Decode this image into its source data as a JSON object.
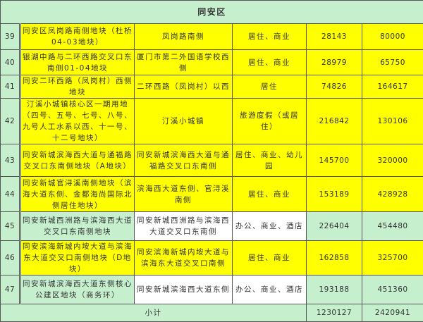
{
  "title": "同安区",
  "colors": {
    "green": "#c6efce",
    "yellow": "#ffff00",
    "white": "#ffffff"
  },
  "rows": [
    {
      "no": "39",
      "name": "同安区凤岗路南侧地块（杜桥04-03地块）",
      "location": "凤岗路南侧",
      "use": "居住、商业",
      "area": "28143",
      "value": "80000"
    },
    {
      "no": "40",
      "name": "银湖中路与二环西路交叉口东南侧01-04地块",
      "location": "厦门市第二外国语学校西侧",
      "use": "居住、商业",
      "area": "28979",
      "value": "65750"
    },
    {
      "no": "41",
      "name": "同安二环西路（凤岗村）西侧地块",
      "location": "二环西路（凤岗村）以西",
      "use": "居住",
      "area": "74826",
      "value": "164617"
    },
    {
      "no": "42",
      "name": "汀溪小城镇核心区一期用地（四号、五号、七号、八号、九号人工水系以西、十一号、十二号地块）",
      "location": "汀溪小城镇",
      "use": "旅游度假（或居住）",
      "area": "216842",
      "value": "130106"
    },
    {
      "no": "43",
      "name": "同安新城滨海西大道与通福路交叉口东南侧地块（A地块）",
      "location": "同安新城滨海西大道与通福路交叉口东南侧",
      "use": "居住、商业、幼儿园",
      "area": "145700",
      "value": "320000"
    },
    {
      "no": "44",
      "name": "同安新城官浔溪南侧地块（滨海大道东侧、金都海尚国际北侧居住地块）",
      "location": "滨海西大道东侧、官浔溪南侧",
      "use": "居住、商业",
      "area": "153189",
      "value": "428928"
    },
    {
      "no": "45",
      "name": "同安新城西洲路与滨海西大道交叉口东南侧地块",
      "location": "同安新城西洲路与滨海西大道交叉口东南侧",
      "use": "办公、商业、酒店",
      "area": "226404",
      "value": "454480"
    },
    {
      "no": "46",
      "name": "同安滨海新城内垵大道与滨海东大道交叉口南侧地块（D地块）",
      "location": "同安滨海新城内垵大道与滨海东大道交叉口南侧",
      "use": "居住、商业",
      "area": "162858",
      "value": "325700"
    },
    {
      "no": "47",
      "name": "同安新城滨海西大道东侧核心公建区地块（商务环）",
      "location": "同安新城滨海西大道东侧",
      "use": "办公、商业、酒店",
      "area": "193188",
      "value": "451360"
    }
  ],
  "subtotal": {
    "label": "小计",
    "area": "1230127",
    "value": "2420941"
  }
}
